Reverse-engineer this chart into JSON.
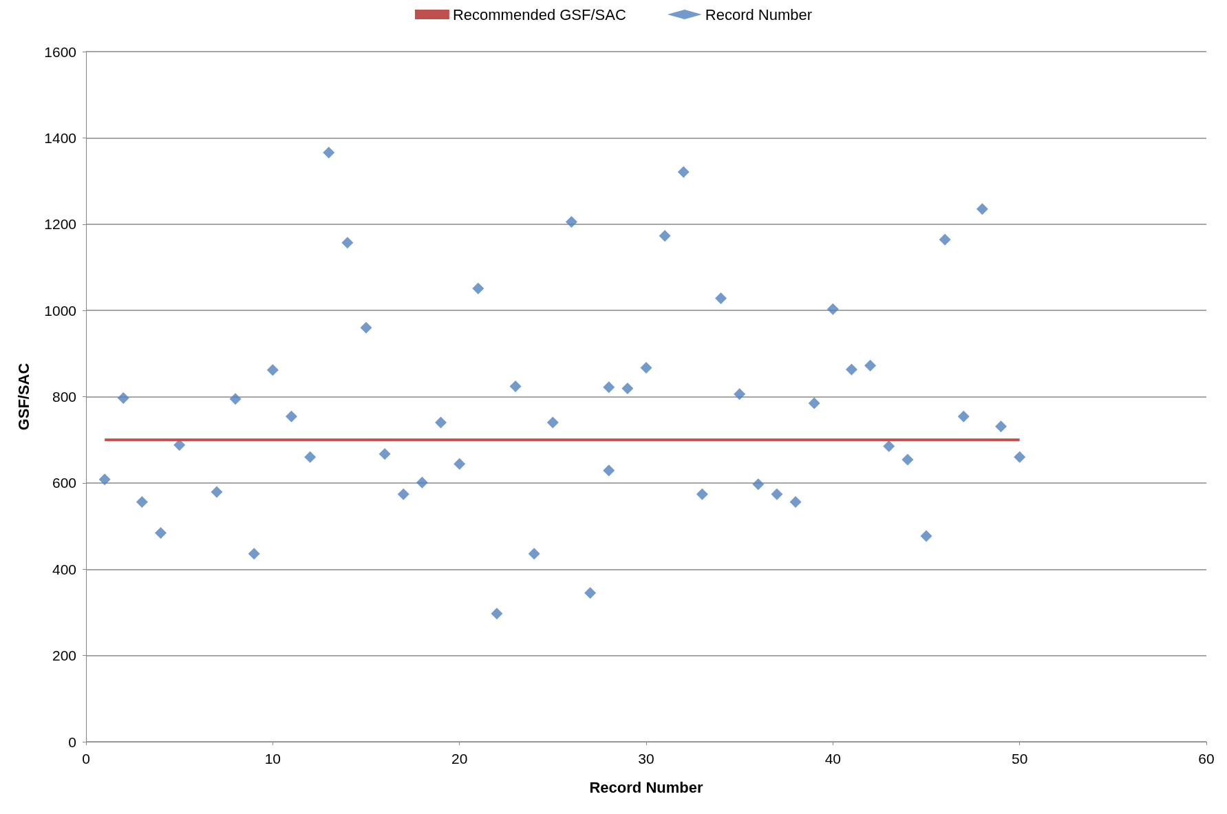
{
  "chart_data": {
    "type": "scatter",
    "xlabel": "Record Number",
    "ylabel": "GSF/SAC",
    "xlim": [
      0,
      60
    ],
    "xticks": [
      0,
      10,
      20,
      30,
      40,
      50,
      60
    ],
    "ylim": [
      0,
      1600
    ],
    "yticks": [
      0,
      200,
      400,
      600,
      800,
      1000,
      1200,
      1400,
      1600
    ],
    "grid": "y",
    "legend": "top",
    "series": [
      {
        "name": "Recommended GSF/SAC",
        "type": "line",
        "marker": "none",
        "color": "#c0504d",
        "x": [
          1,
          50
        ],
        "values": [
          700,
          700
        ]
      },
      {
        "name": "Record Number",
        "marker": "diamond",
        "color": "#4f81bd",
        "x": [
          1,
          2,
          3,
          4,
          5,
          7,
          8,
          9,
          10,
          11,
          12,
          13,
          14,
          15,
          16,
          17,
          18,
          19,
          20,
          21,
          22,
          23,
          24,
          25,
          26,
          27,
          28,
          28,
          29,
          30,
          31,
          32,
          33,
          34,
          35,
          36,
          37,
          38,
          39,
          40,
          41,
          42,
          43,
          44,
          45,
          46,
          47,
          48,
          49,
          50
        ],
        "values": [
          608,
          797,
          556,
          484,
          688,
          579,
          795,
          436,
          862,
          754,
          660,
          1366,
          1157,
          960,
          667,
          574,
          601,
          740,
          644,
          1051,
          297,
          824,
          436,
          740,
          1205,
          345,
          822,
          629,
          819,
          867,
          1173,
          1321,
          574,
          1028,
          806,
          597,
          574,
          556,
          785,
          1003,
          863,
          872,
          685,
          654,
          477,
          1164,
          754,
          1235,
          731,
          660
        ]
      }
    ]
  }
}
